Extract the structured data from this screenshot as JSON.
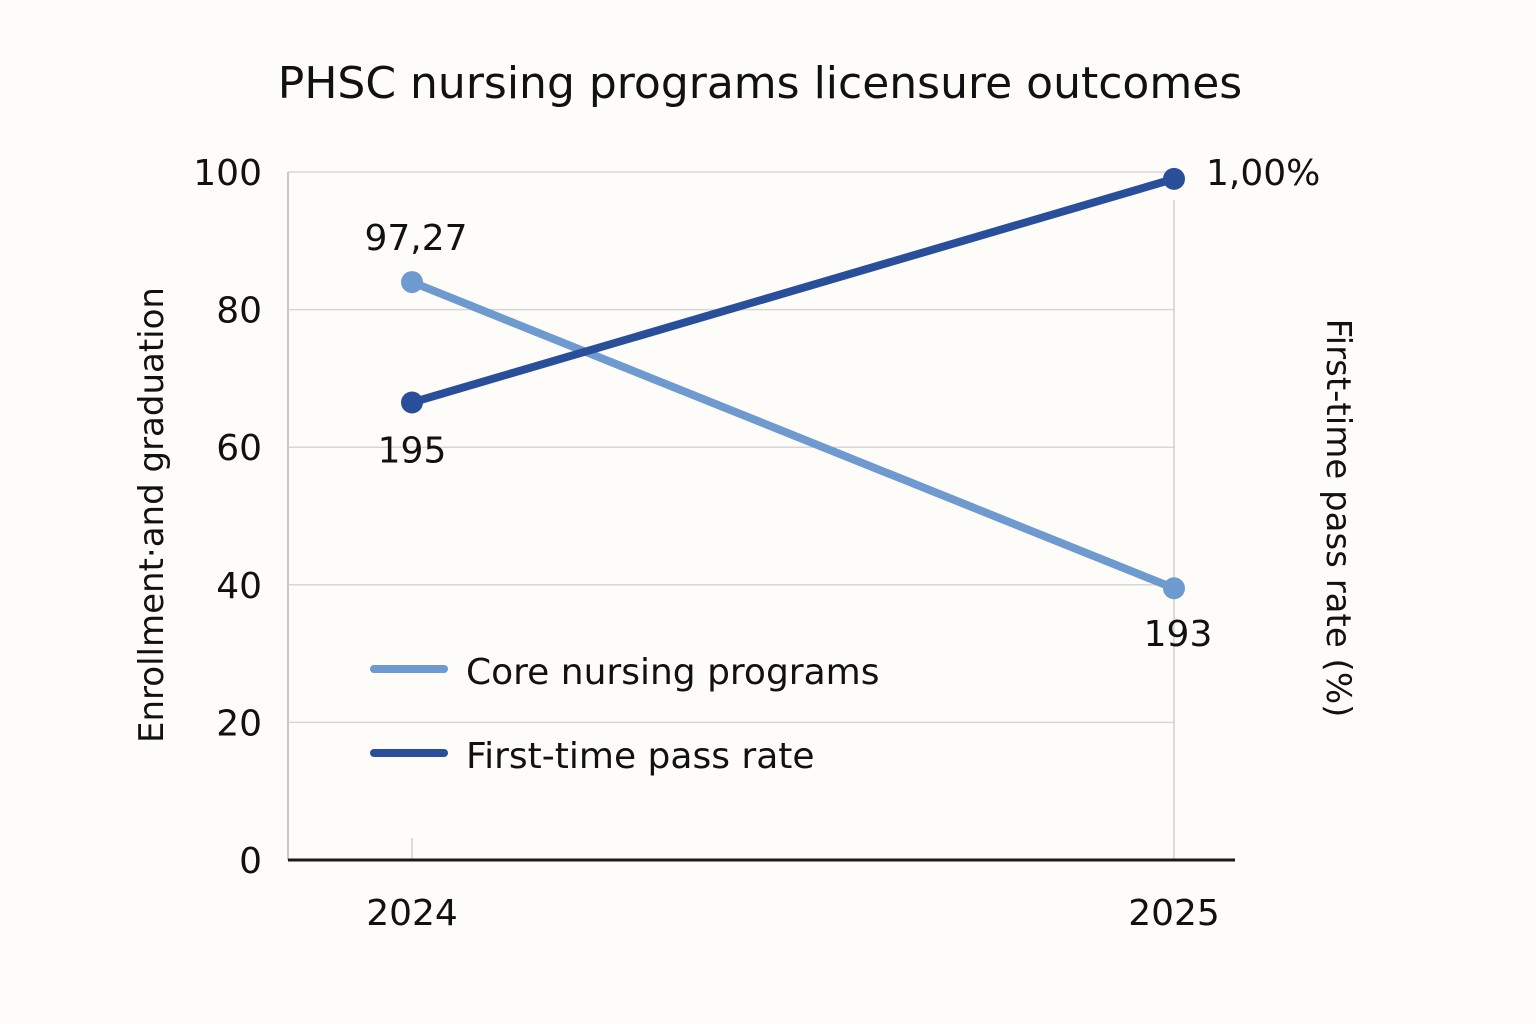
{
  "chart_data": {
    "type": "line",
    "title": "PHSC nursing programs licensure outcomes",
    "xlabel": "",
    "ylabel": "Enrollment·and graduation",
    "ylabel_right": "First-time pass rate (%)",
    "ylim": [
      0,
      100
    ],
    "yticks": [
      "0",
      "20",
      "40",
      "60",
      "80",
      "100"
    ],
    "categories": [
      "2024",
      "2025"
    ],
    "grid": true,
    "legend_position": "lower-left",
    "series": [
      {
        "name": "Core nursing programs",
        "color": "#6e9ad0",
        "values": [
          84,
          39.5
        ],
        "labels": [
          "97,27",
          "193"
        ]
      },
      {
        "name": "First-time pass rate",
        "color": "#2a4f9a",
        "values": [
          66.5,
          99
        ],
        "labels": [
          "195",
          "1,00%"
        ]
      }
    ]
  }
}
